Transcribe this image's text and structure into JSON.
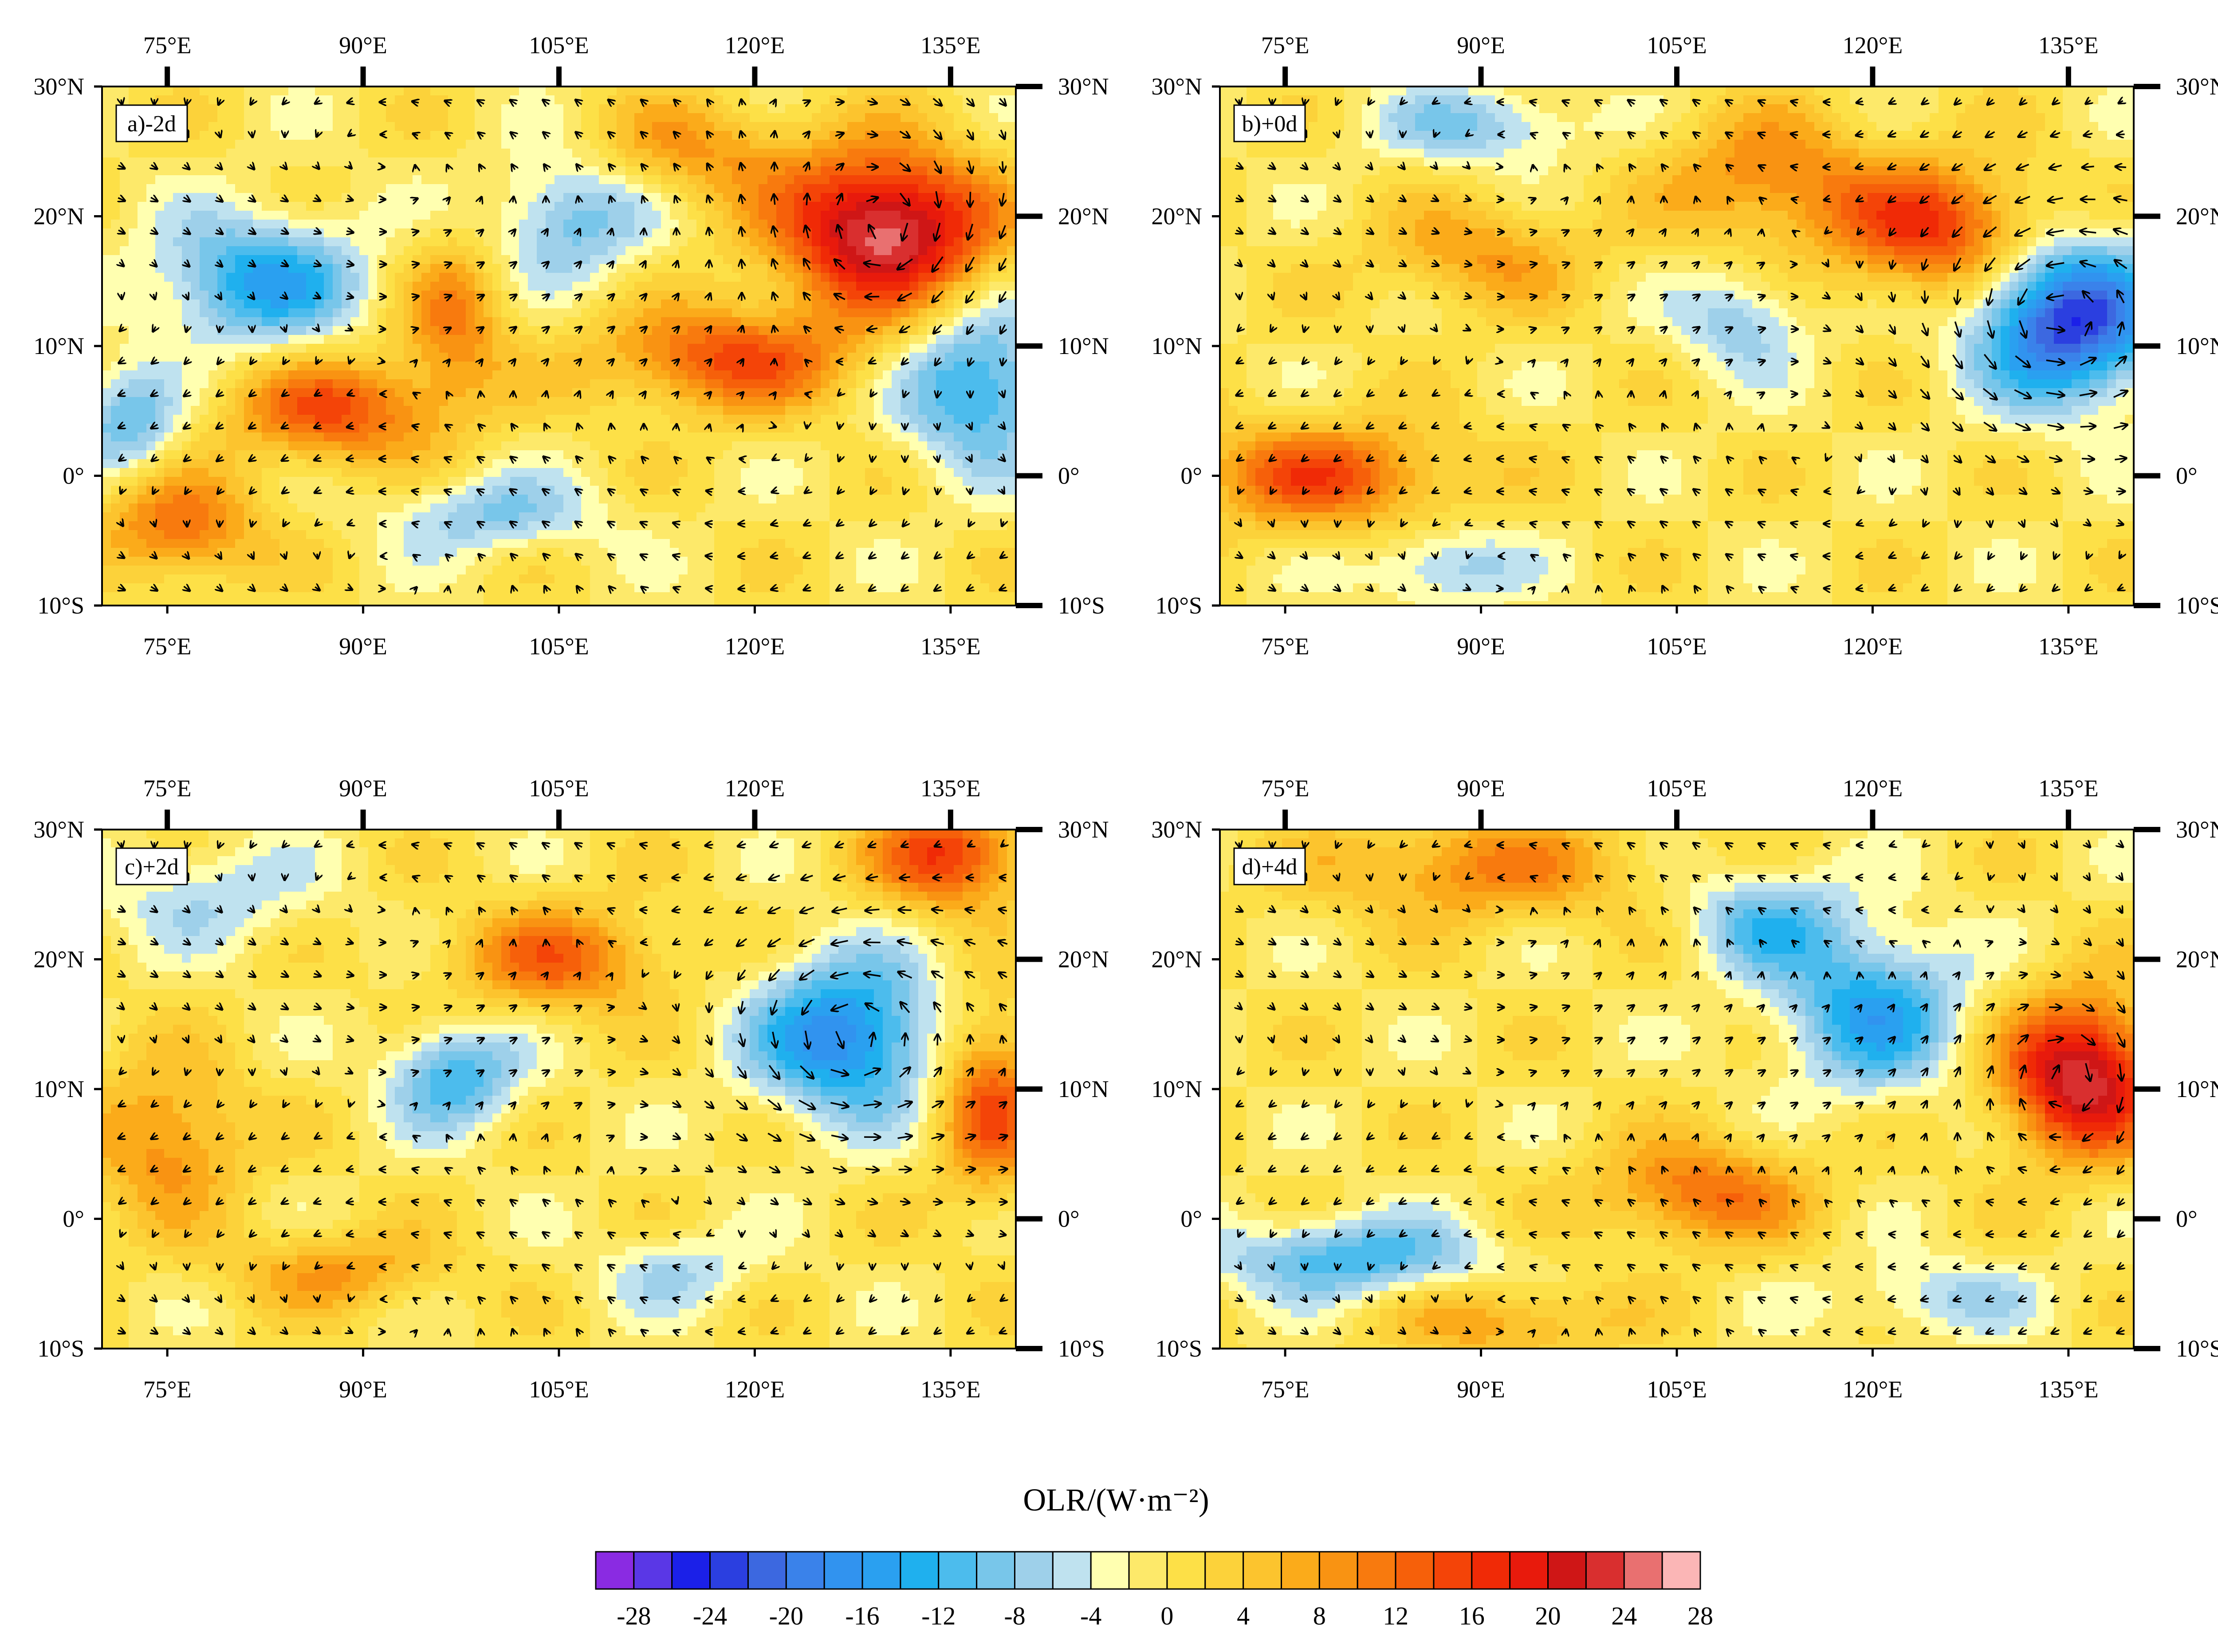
{
  "panels": [
    {
      "id": "a",
      "label": "a)-2d",
      "anomalies": [
        {
          "lon": 130,
          "lat": 19,
          "value": 26,
          "spread_lon": 8,
          "spread_lat": 6
        },
        {
          "lon": 118,
          "lat": 9,
          "value": 14,
          "spread_lon": 10,
          "spread_lat": 4
        },
        {
          "lon": 88,
          "lat": 5,
          "value": 14,
          "spread_lon": 8,
          "spread_lat": 4
        },
        {
          "lon": 97,
          "lat": 12,
          "value": 10,
          "spread_lon": 4,
          "spread_lat": 6
        },
        {
          "lon": 76,
          "lat": -4,
          "value": 12,
          "spread_lon": 6,
          "spread_lat": 4
        },
        {
          "lon": 115,
          "lat": 25,
          "value": 8,
          "spread_lon": 8,
          "spread_lat": 4
        },
        {
          "lon": 82,
          "lat": 15,
          "value": -14,
          "spread_lon": 8,
          "spread_lat": 5
        },
        {
          "lon": 106,
          "lat": 20,
          "value": -10,
          "spread_lon": 6,
          "spread_lat": 5
        },
        {
          "lon": 137,
          "lat": 7,
          "value": -14,
          "spread_lon": 6,
          "spread_lat": 6
        },
        {
          "lon": 72,
          "lat": 4,
          "value": -10,
          "spread_lon": 4,
          "spread_lat": 4
        },
        {
          "lon": 100,
          "lat": -3,
          "value": -8,
          "spread_lon": 8,
          "spread_lat": 3
        }
      ],
      "circulations": [
        {
          "lon": 130,
          "lat": 19,
          "sense": 1,
          "radius": 9
        }
      ]
    },
    {
      "id": "b",
      "label": "b)+0d",
      "anomalies": [
        {
          "lon": 135,
          "lat": 12,
          "value": -24,
          "spread_lon": 7,
          "spread_lat": 6
        },
        {
          "lon": 125,
          "lat": 19,
          "value": 16,
          "spread_lon": 8,
          "spread_lat": 5
        },
        {
          "lon": 112,
          "lat": 23,
          "value": 10,
          "spread_lon": 8,
          "spread_lat": 5
        },
        {
          "lon": 78,
          "lat": 0,
          "value": 14,
          "spread_lon": 10,
          "spread_lat": 4
        },
        {
          "lon": 90,
          "lat": 17,
          "value": 8,
          "spread_lon": 8,
          "spread_lat": 4
        },
        {
          "lon": 110,
          "lat": 12,
          "value": -8,
          "spread_lon": 5,
          "spread_lat": 4
        },
        {
          "lon": 90,
          "lat": 27,
          "value": -8,
          "spread_lon": 8,
          "spread_lat": 3
        },
        {
          "lon": 87,
          "lat": -7,
          "value": -8,
          "spread_lon": 6,
          "spread_lat": 3
        }
      ],
      "circulations": [
        {
          "lon": 134,
          "lat": 12,
          "sense": -1,
          "radius": 9
        }
      ]
    },
    {
      "id": "c",
      "label": "c)+2d",
      "anomalies": [
        {
          "lon": 127,
          "lat": 14,
          "value": -18,
          "spread_lon": 7,
          "spread_lat": 6
        },
        {
          "lon": 135,
          "lat": 28,
          "value": 16,
          "spread_lon": 6,
          "spread_lat": 4
        },
        {
          "lon": 138,
          "lat": 9,
          "value": 14,
          "spread_lon": 4,
          "spread_lat": 7
        },
        {
          "lon": 105,
          "lat": 20,
          "value": 12,
          "spread_lon": 8,
          "spread_lat": 4
        },
        {
          "lon": 75,
          "lat": 6,
          "value": 10,
          "spread_lon": 6,
          "spread_lat": 6
        },
        {
          "lon": 88,
          "lat": -4,
          "value": 8,
          "spread_lon": 8,
          "spread_lat": 3
        },
        {
          "lon": 97,
          "lat": 11,
          "value": -12,
          "spread_lon": 5,
          "spread_lat": 4
        },
        {
          "lon": 78,
          "lat": 25,
          "value": -6,
          "spread_lon": 8,
          "spread_lat": 4
        },
        {
          "lon": 114,
          "lat": -4,
          "value": -6,
          "spread_lon": 6,
          "spread_lat": 3
        }
      ],
      "circulations": [
        {
          "lon": 127,
          "lat": 14,
          "sense": -1,
          "radius": 9
        }
      ]
    },
    {
      "id": "d",
      "label": "d)+4d",
      "anomalies": [
        {
          "lon": 136,
          "lat": 11,
          "value": 24,
          "spread_lon": 6,
          "spread_lat": 6
        },
        {
          "lon": 120,
          "lat": 16,
          "value": -14,
          "spread_lon": 7,
          "spread_lat": 6
        },
        {
          "lon": 112,
          "lat": 23,
          "value": -10,
          "spread_lon": 6,
          "spread_lat": 4
        },
        {
          "lon": 90,
          "lat": 27,
          "value": 10,
          "spread_lon": 12,
          "spread_lat": 4
        },
        {
          "lon": 107,
          "lat": 2,
          "value": 12,
          "spread_lon": 8,
          "spread_lat": 4
        },
        {
          "lon": 80,
          "lat": -3,
          "value": -12,
          "spread_lon": 10,
          "spread_lat": 3
        },
        {
          "lon": 92,
          "lat": -8,
          "value": 8,
          "spread_lon": 8,
          "spread_lat": 3
        },
        {
          "lon": 125,
          "lat": -6,
          "value": -6,
          "spread_lon": 8,
          "spread_lat": 3
        }
      ],
      "circulations": [
        {
          "lon": 135,
          "lat": 11,
          "sense": 1,
          "radius": 9
        }
      ]
    }
  ],
  "map_extent": {
    "lon_min": 70,
    "lon_max": 140,
    "lat_min": -10,
    "lat_max": 30
  },
  "lon_ticks": [
    {
      "value": 75,
      "label": "75°E"
    },
    {
      "value": 90,
      "label": "90°E"
    },
    {
      "value": 105,
      "label": "105°E"
    },
    {
      "value": 120,
      "label": "120°E"
    },
    {
      "value": 135,
      "label": "135°E"
    }
  ],
  "lat_ticks": [
    {
      "value": 30,
      "label": "30°N"
    },
    {
      "value": 20,
      "label": "20°N"
    },
    {
      "value": 10,
      "label": "10°N"
    },
    {
      "value": 0,
      "label": "0°"
    },
    {
      "value": -10,
      "label": "10°S"
    }
  ],
  "colorbar": {
    "title": "OLR/(W·m⁻²)",
    "tick_labels": [
      "-28",
      "-24",
      "-20",
      "-16",
      "-12",
      "-8",
      "-4",
      "0",
      "4",
      "8",
      "12",
      "16",
      "20",
      "24",
      "28"
    ],
    "colors": [
      "#8a2be2",
      "#5a37e6",
      "#1b20e8",
      "#2b3fe0",
      "#3c68e0",
      "#3a82ea",
      "#3193ef",
      "#2aa0f0",
      "#1fb0ee",
      "#4cbced",
      "#78c6ea",
      "#9ed0ea",
      "#bfe2ef",
      "#ffffb0",
      "#fde96a",
      "#fde047",
      "#fcd23a",
      "#fcc42e",
      "#fbab1a",
      "#f99312",
      "#f87a0e",
      "#f6600a",
      "#f44408",
      "#f02a06",
      "#e81a0c",
      "#cf1616",
      "#d92f2f",
      "#e97070",
      "#fbb6b6"
    ]
  }
}
